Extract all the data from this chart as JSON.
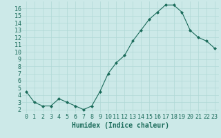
{
  "x": [
    0,
    1,
    2,
    3,
    4,
    5,
    6,
    7,
    8,
    9,
    10,
    11,
    12,
    13,
    14,
    15,
    16,
    17,
    18,
    19,
    20,
    21,
    22,
    23
  ],
  "y": [
    4.5,
    3.0,
    2.5,
    2.5,
    3.5,
    3.0,
    2.5,
    2.0,
    2.5,
    4.5,
    7.0,
    8.5,
    9.5,
    11.5,
    13.0,
    14.5,
    15.5,
    16.5,
    16.5,
    15.5,
    13.0,
    12.0,
    11.5,
    10.5
  ],
  "line_color": "#1a6b5a",
  "marker": "D",
  "marker_size": 2,
  "bg_color": "#cce9e8",
  "grid_color": "#b0d8d6",
  "xlabel": "Humidex (Indice chaleur)",
  "xlim": [
    -0.5,
    23.5
  ],
  "ylim": [
    1.5,
    17.0
  ],
  "yticks": [
    2,
    3,
    4,
    5,
    6,
    7,
    8,
    9,
    10,
    11,
    12,
    13,
    14,
    15,
    16
  ],
  "xticks": [
    0,
    1,
    2,
    3,
    4,
    5,
    6,
    7,
    8,
    9,
    10,
    11,
    12,
    13,
    14,
    15,
    16,
    17,
    18,
    19,
    20,
    21,
    22,
    23
  ],
  "tick_label_fontsize": 6,
  "xlabel_fontsize": 7,
  "label_color": "#1a6b5a",
  "bottom_bar_color": "#1a6b5a",
  "line_width": 0.8
}
